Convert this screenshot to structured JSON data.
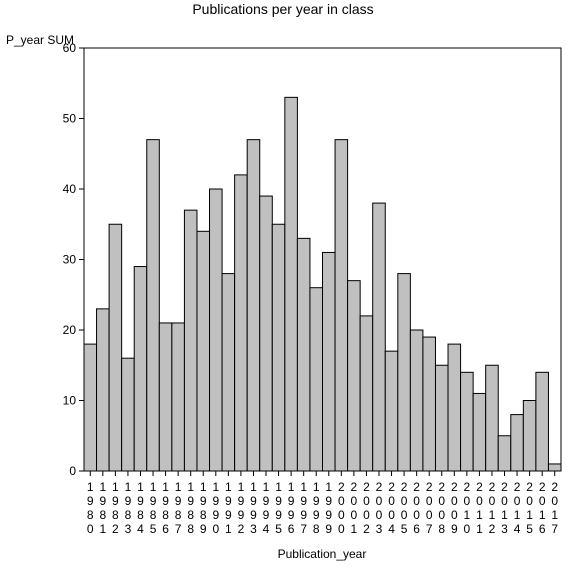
{
  "chart_data": {
    "type": "bar",
    "title": "Publications per year in class",
    "ylabel": "P_year SUM",
    "xlabel": "Publication_year",
    "ylim": [
      0,
      60
    ],
    "yticks": [
      0,
      10,
      20,
      30,
      40,
      50,
      60
    ],
    "grid": false,
    "legend": "none",
    "colors": {
      "bar_fill": "#c0c0c0",
      "bar_stroke": "#000000"
    },
    "categories": [
      "1980",
      "1981",
      "1982",
      "1983",
      "1984",
      "1985",
      "1986",
      "1987",
      "1988",
      "1989",
      "1990",
      "1991",
      "1992",
      "1993",
      "1994",
      "1995",
      "1996",
      "1997",
      "1998",
      "1999",
      "2000",
      "2001",
      "2002",
      "2003",
      "2004",
      "2005",
      "2006",
      "2007",
      "2008",
      "2009",
      "2010",
      "2011",
      "2012",
      "2013",
      "2014",
      "2015",
      "2016",
      "2017"
    ],
    "values": [
      18,
      23,
      35,
      16,
      29,
      47,
      21,
      21,
      37,
      34,
      40,
      28,
      42,
      47,
      39,
      35,
      53,
      33,
      26,
      31,
      47,
      27,
      22,
      38,
      17,
      28,
      20,
      19,
      15,
      18,
      14,
      11,
      15,
      5,
      8,
      10,
      14,
      1
    ]
  }
}
